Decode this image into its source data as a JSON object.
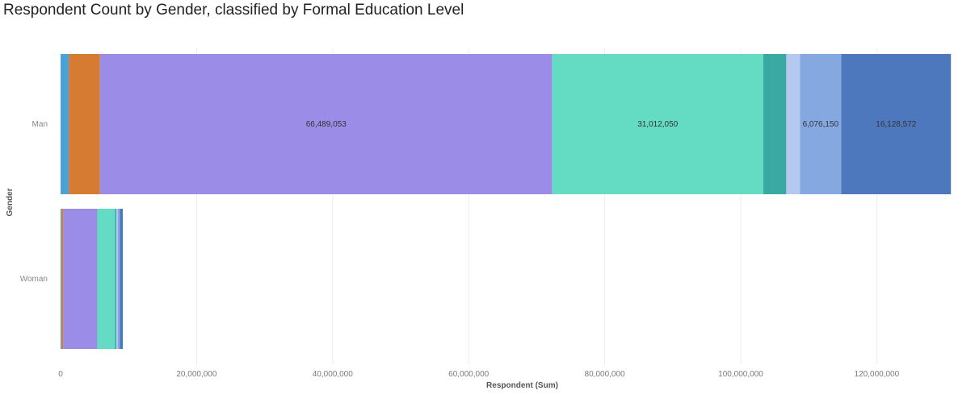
{
  "chart_data": {
    "type": "bar",
    "orientation": "horizontal",
    "stacked": true,
    "title": "Respondent Count by Gender, classified by Formal Education Level",
    "xlabel": "Respondent (Sum)",
    "ylabel": "Gender",
    "xlim": [
      0,
      131000000
    ],
    "xticks": [
      0,
      20000000,
      40000000,
      60000000,
      80000000,
      100000000,
      120000000
    ],
    "xtick_labels": [
      "0",
      "20,000,000",
      "40,000,000",
      "60,000,000",
      "80,000,000",
      "100,000,000",
      "120,000,000"
    ],
    "grid": true,
    "legend": "none",
    "categories": [
      "Man",
      "Woman"
    ],
    "series": [
      {
        "color": "#4aa3d8",
        "values": [
          1200000,
          150000
        ],
        "labels": [
          "",
          ""
        ]
      },
      {
        "color": "#d57b32",
        "values": [
          4600000,
          250000
        ],
        "labels": [
          "",
          ""
        ]
      },
      {
        "color": "#9b8ce8",
        "values": [
          66489053,
          5000000
        ],
        "labels": [
          "66,489,053",
          ""
        ]
      },
      {
        "color": "#64dcc4",
        "values": [
          31012050,
          2600000
        ],
        "labels": [
          "31,012,050",
          ""
        ]
      },
      {
        "color": "#3aa9a2",
        "values": [
          3400000,
          200000
        ],
        "labels": [
          "",
          ""
        ]
      },
      {
        "color": "#b5c8ef",
        "values": [
          2000000,
          200000
        ],
        "labels": [
          "",
          ""
        ]
      },
      {
        "color": "#85a8e0",
        "values": [
          6076150,
          300000
        ],
        "labels": [
          "6,076,150",
          ""
        ]
      },
      {
        "color": "#4d78bd",
        "values": [
          16128572,
          450000
        ],
        "labels": [
          "16,128,572",
          ""
        ]
      }
    ]
  }
}
